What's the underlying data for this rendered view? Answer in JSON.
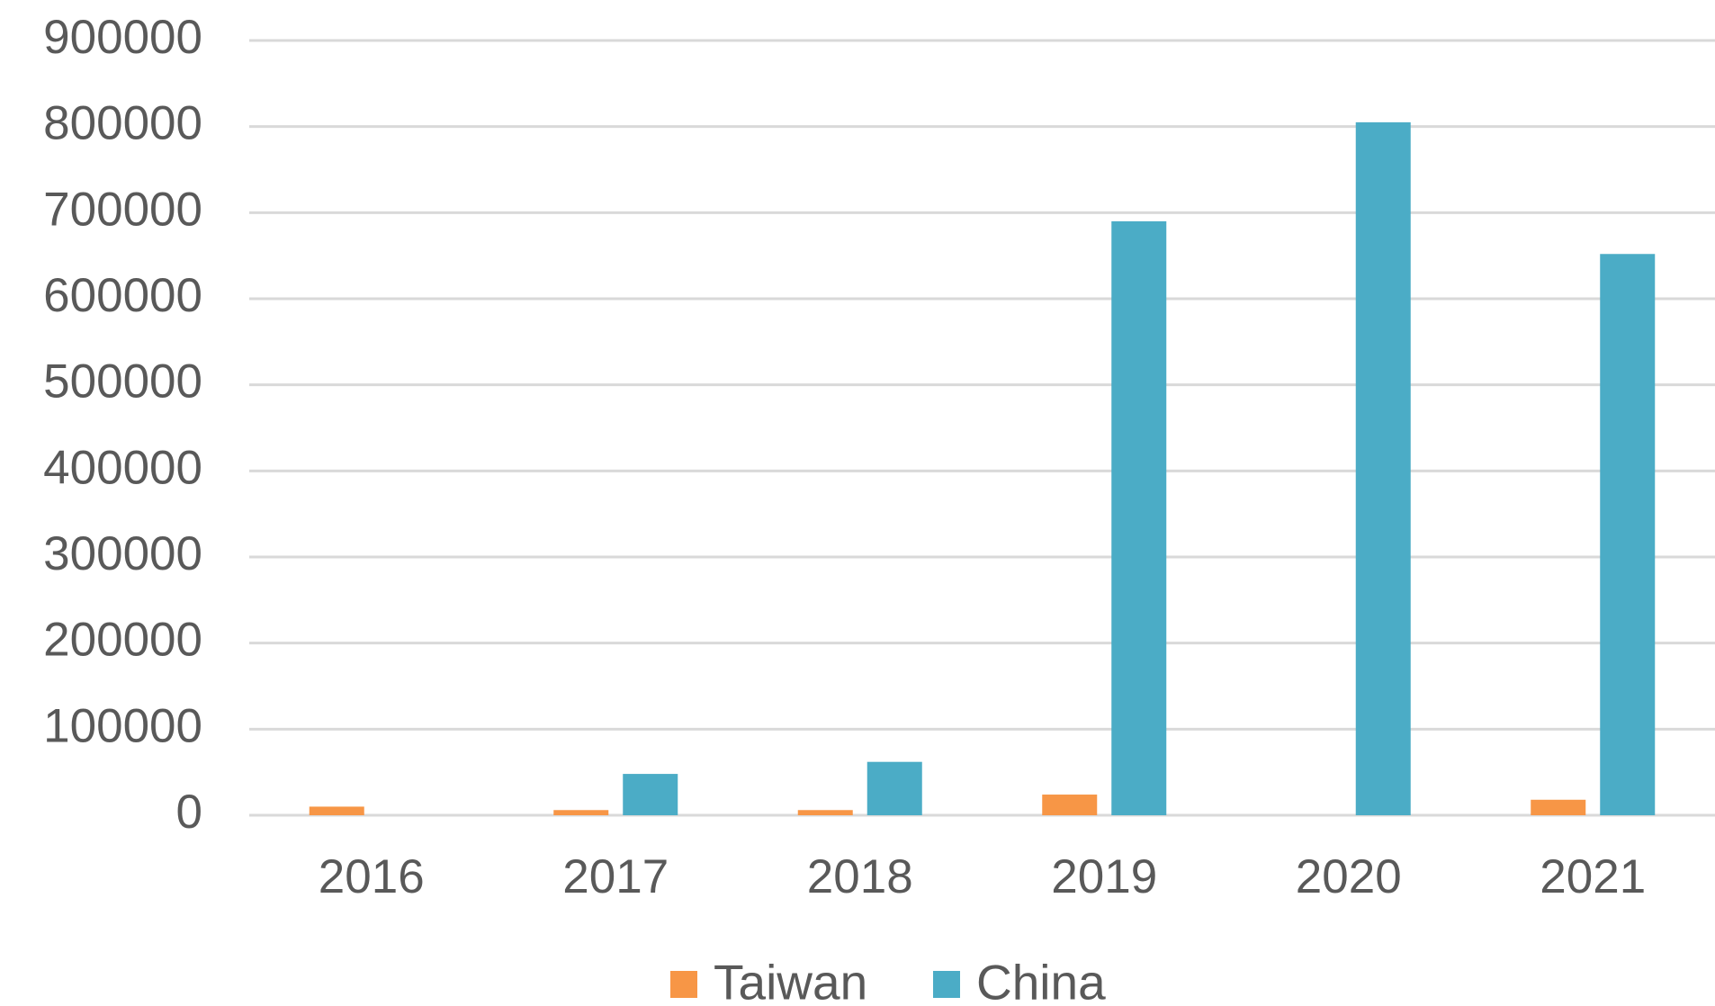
{
  "chart_data": {
    "type": "bar",
    "categories": [
      "2016",
      "2017",
      "2018",
      "2019",
      "2020",
      "2021"
    ],
    "series": [
      {
        "name": "Taiwan",
        "color": "#f79646",
        "values": [
          10000,
          6000,
          6000,
          24000,
          0,
          18000
        ]
      },
      {
        "name": "China",
        "color": "#4bacc6",
        "values": [
          0,
          48000,
          62000,
          690000,
          805000,
          652000
        ]
      }
    ],
    "ylim": [
      0,
      900000
    ],
    "yticks": [
      0,
      100000,
      200000,
      300000,
      400000,
      500000,
      600000,
      700000,
      800000,
      900000
    ],
    "grid": true,
    "legend": "bottom"
  }
}
